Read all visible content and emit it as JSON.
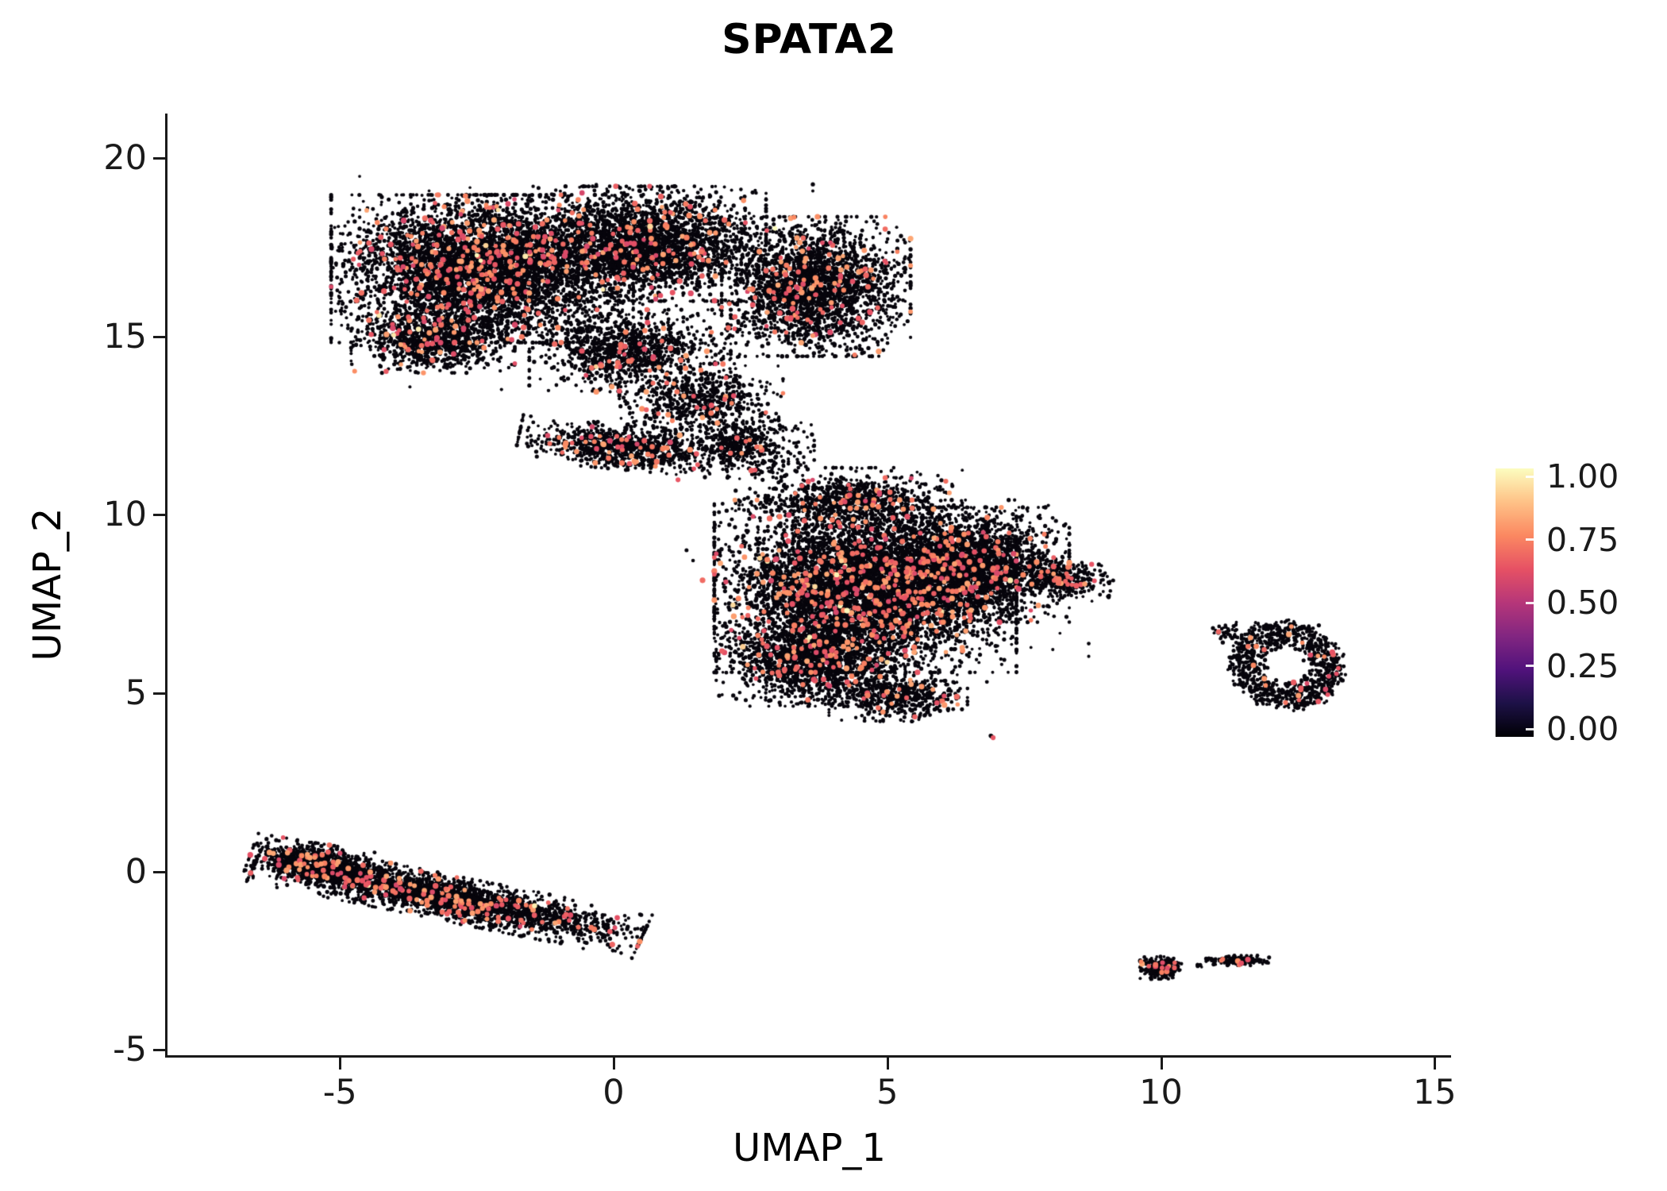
{
  "figure": {
    "background": "#ffffff"
  },
  "chart_data": {
    "type": "scatter",
    "title": "SPATA2",
    "xlabel": "UMAP_1",
    "ylabel": "UMAP_2",
    "xlim": [
      -8.15,
      15.3
    ],
    "ylim": [
      -5.15,
      21.25
    ],
    "x_ticks": [
      -5,
      0,
      5,
      10,
      15
    ],
    "x_tick_labels": [
      "-5",
      "0",
      "5",
      "10",
      "15"
    ],
    "y_ticks": [
      -5,
      0,
      5,
      10,
      15,
      20
    ],
    "y_tick_labels": [
      "-5",
      "0",
      "5",
      "10",
      "15",
      "20"
    ],
    "grid": false,
    "axis_color": "#1a1a1a",
    "point_color_low": "#07050c",
    "point_color_high": "#ea5a63",
    "expression_range": [
      0,
      1
    ],
    "seed": 1337,
    "colorbar": {
      "position": "right",
      "tick_labels": [
        "1.00",
        "0.75",
        "0.50",
        "0.25",
        "0.00"
      ],
      "tick_values": [
        1.0,
        0.75,
        0.5,
        0.25,
        0.0
      ],
      "colormap": [
        "#000004",
        "#1d1147",
        "#51127c",
        "#822681",
        "#b63679",
        "#e65164",
        "#fb8861",
        "#fec287",
        "#fcfdbf"
      ]
    },
    "clusters": [
      {
        "name": "upper-left-lobe",
        "cx": -2.4,
        "cy": 16.9,
        "rx": 2.4,
        "ry": 1.8,
        "rot": 0,
        "n": 5200,
        "hi_frac": 0.055
      },
      {
        "name": "upper-mid",
        "cx": 0.6,
        "cy": 17.6,
        "rx": 1.9,
        "ry": 1.4,
        "rot": 0,
        "n": 2800,
        "hi_frac": 0.05
      },
      {
        "name": "upper-right-lobe",
        "cx": 3.7,
        "cy": 16.4,
        "rx": 1.5,
        "ry": 1.7,
        "rot": 0,
        "n": 2600,
        "hi_frac": 0.045
      },
      {
        "name": "upper-lower-left",
        "cx": -3.3,
        "cy": 14.9,
        "rx": 1.3,
        "ry": 0.8,
        "rot": 0,
        "n": 1000,
        "hi_frac": 0.05
      },
      {
        "name": "upper-lower-mid",
        "cx": 0.3,
        "cy": 14.6,
        "rx": 1.6,
        "ry": 1.0,
        "rot": 0,
        "n": 1100,
        "hi_frac": 0.05
      },
      {
        "name": "neck-upper",
        "cx": 1.6,
        "cy": 13.2,
        "rx": 1.3,
        "ry": 0.9,
        "rot": 0,
        "n": 650,
        "hi_frac": 0.04
      },
      {
        "name": "neck-band",
        "cx": 0.2,
        "cy": 11.9,
        "rx": 1.7,
        "ry": 0.55,
        "rot": -8,
        "n": 900,
        "hi_frac": 0.06
      },
      {
        "name": "neck-join",
        "cx": 2.4,
        "cy": 11.9,
        "rx": 1.1,
        "ry": 0.8,
        "rot": 0,
        "n": 500,
        "hi_frac": 0.04
      },
      {
        "name": "upper-halo",
        "cx": -0.5,
        "cy": 16.5,
        "rx": 3.6,
        "ry": 2.6,
        "rot": 0,
        "n": 320,
        "hi_frac": 0.03
      },
      {
        "name": "central-core",
        "cx": 4.6,
        "cy": 8.0,
        "rx": 2.4,
        "ry": 2.1,
        "rot": 0,
        "n": 6500,
        "hi_frac": 0.055
      },
      {
        "name": "central-right",
        "cx": 6.6,
        "cy": 8.6,
        "rx": 1.5,
        "ry": 1.4,
        "rot": 0,
        "n": 2200,
        "hi_frac": 0.05
      },
      {
        "name": "central-lower-left",
        "cx": 3.6,
        "cy": 5.9,
        "rx": 1.5,
        "ry": 1.1,
        "rot": 0,
        "n": 1600,
        "hi_frac": 0.05
      },
      {
        "name": "central-bottom-tip",
        "cx": 5.2,
        "cy": 4.9,
        "rx": 1.1,
        "ry": 0.6,
        "rot": 0,
        "n": 500,
        "hi_frac": 0.05
      },
      {
        "name": "central-right-tail",
        "cx": 8.2,
        "cy": 8.2,
        "rx": 0.8,
        "ry": 0.45,
        "rot": -10,
        "n": 350,
        "hi_frac": 0.04
      },
      {
        "name": "central-top",
        "cx": 4.3,
        "cy": 10.4,
        "rx": 1.8,
        "ry": 0.8,
        "rot": 0,
        "n": 850,
        "hi_frac": 0.05
      },
      {
        "name": "central-halo",
        "cx": 5.0,
        "cy": 7.8,
        "rx": 3.2,
        "ry": 2.6,
        "rot": 0,
        "n": 230,
        "hi_frac": 0.02
      },
      {
        "name": "isolated-dot",
        "cx": 6.9,
        "cy": 3.8,
        "rx": 0.08,
        "ry": 0.06,
        "rot": 0,
        "n": 3,
        "hi_frac": 0.5
      },
      {
        "name": "strip-main",
        "cx": -3.0,
        "cy": -0.75,
        "rx": 3.2,
        "ry": 0.55,
        "rot": -17,
        "n": 2600,
        "hi_frac": 0.05
      },
      {
        "name": "strip-head",
        "cx": -5.4,
        "cy": 0.2,
        "rx": 1.1,
        "ry": 0.5,
        "rot": -14,
        "n": 900,
        "hi_frac": 0.05
      },
      {
        "name": "right-ring",
        "cx": 12.3,
        "cy": 5.8,
        "rx": 1.0,
        "ry": 1.2,
        "rot": 15,
        "n": 950,
        "hi_frac": 0.035,
        "shape": "ring",
        "inner": 0.45
      },
      {
        "name": "right-ring-outliers",
        "cx": 11.2,
        "cy": 6.7,
        "rx": 0.35,
        "ry": 0.25,
        "rot": 0,
        "n": 40,
        "hi_frac": 0.05
      },
      {
        "name": "small-bottom-a",
        "cx": 10.0,
        "cy": -2.7,
        "rx": 0.33,
        "ry": 0.27,
        "rot": 0,
        "n": 260,
        "hi_frac": 0.04
      },
      {
        "name": "small-bottom-b",
        "cx": 11.4,
        "cy": -2.5,
        "rx": 0.5,
        "ry": 0.13,
        "rot": 0,
        "n": 170,
        "hi_frac": 0.04
      },
      {
        "name": "small-bottom-c",
        "cx": 10.7,
        "cy": -2.62,
        "rx": 0.07,
        "ry": 0.05,
        "rot": 0,
        "n": 6,
        "hi_frac": 0
      }
    ]
  }
}
